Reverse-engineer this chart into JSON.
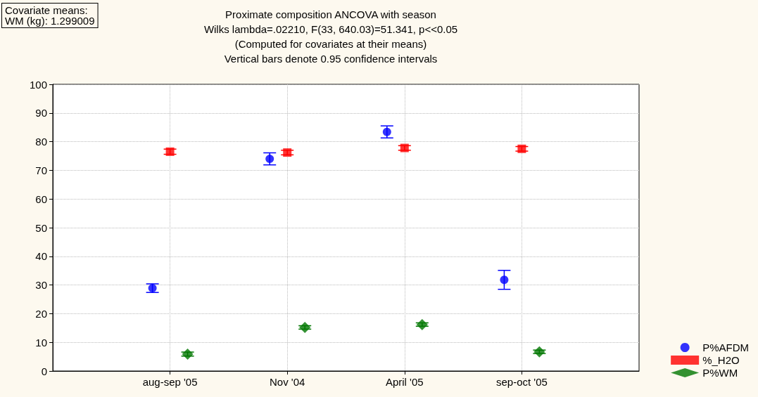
{
  "chart_data": {
    "type": "scatter",
    "title": "Proximate composition ANCOVA with season",
    "subtitle": "Wilks lambda=.02210, F(33, 640.03)=51.341, p<<0.05\n(Computed for covariates at their means)\nVertical bars denote 0.95 confidence intervals",
    "annotations": [
      "Covariate means:\nWM (kg): 1.299009"
    ],
    "categories": [
      "aug-sep '05",
      "Nov '04",
      "April '05",
      "sep-oct '05"
    ],
    "series": [
      {
        "name": "P%AFDM",
        "color": "#0000ff",
        "marker": "circle",
        "values": [
          28.9,
          74.0,
          83.4,
          31.8
        ],
        "errors": [
          1.5,
          2.1,
          2.1,
          3.3
        ]
      },
      {
        "name": "%_H2O",
        "color": "#ff0000",
        "marker": "square",
        "values": [
          76.5,
          76.2,
          77.8,
          77.5
        ],
        "errors": [
          0.9,
          0.8,
          0.8,
          0.8
        ]
      },
      {
        "name": "P%WM",
        "color": "#007700",
        "marker": "diamond",
        "values": [
          5.9,
          15.2,
          16.2,
          6.7
        ],
        "errors": [
          0.7,
          0.6,
          0.6,
          0.6
        ]
      }
    ],
    "ylim": [
      0,
      100
    ],
    "yticks": [
      0,
      10,
      20,
      30,
      40,
      50,
      60,
      70,
      80,
      90,
      100
    ],
    "grid": true,
    "legend": "bottom right"
  }
}
